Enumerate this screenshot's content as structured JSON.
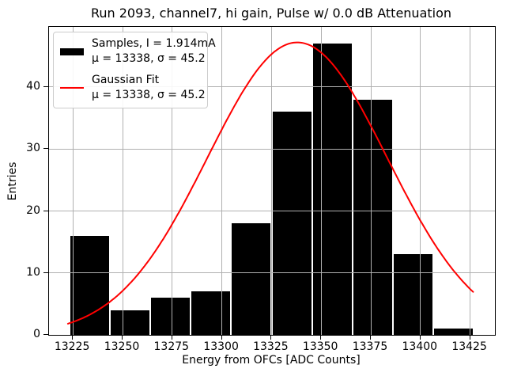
{
  "title": "Run 2093, channel7, hi gain, Pulse w/ 0.0 dB Attenuation",
  "axes": {
    "xlabel": "Energy from OFCs [ADC Counts]",
    "ylabel": "Entries"
  },
  "legend": {
    "entries": [
      {
        "swatch": "black-bar-swatch",
        "label": "Samples, I = 1.914mA",
        "stats": "μ = 13338, σ = 45.2"
      },
      {
        "swatch": "red-line-swatch",
        "label": "Gaussian Fit",
        "stats": "μ = 13338, σ = 45.2"
      }
    ]
  },
  "colors": {
    "bar": "#000000",
    "fit_line": "#ff0000",
    "grid": "#b0b0b0",
    "legend_border": "#cccccc"
  },
  "chart_data": {
    "type": "bar",
    "subtype": "histogram-with-gaussian-fit",
    "title": "Run 2093, channel7, hi gain, Pulse w/ 0.0 dB Attenuation",
    "xlabel": "Energy from OFCs [ADC Counts]",
    "ylabel": "Entries",
    "bins": {
      "start": 13223.4,
      "width": 20.33,
      "counts": [
        16,
        4,
        6,
        7,
        18,
        36,
        47,
        38,
        13,
        1
      ]
    },
    "total_entries": 186,
    "sample_stats": {
      "mu": 13338,
      "sigma": 45.2,
      "current_mA": 1.914
    },
    "fit": {
      "type": "gaussian",
      "mu": 13338,
      "sigma": 45.2,
      "amplitude": 47.2,
      "x_range": [
        13222.5,
        13426.8
      ]
    },
    "xlim": [
      13213,
      13437.5
    ],
    "ylim": [
      0,
      49.7
    ],
    "x_ticks": [
      13225,
      13250,
      13275,
      13300,
      13325,
      13350,
      13375,
      13400,
      13425
    ],
    "y_ticks": [
      0,
      10,
      20,
      30,
      40
    ],
    "grid": true,
    "grid_above_bars": true,
    "legend_position": "upper left"
  }
}
